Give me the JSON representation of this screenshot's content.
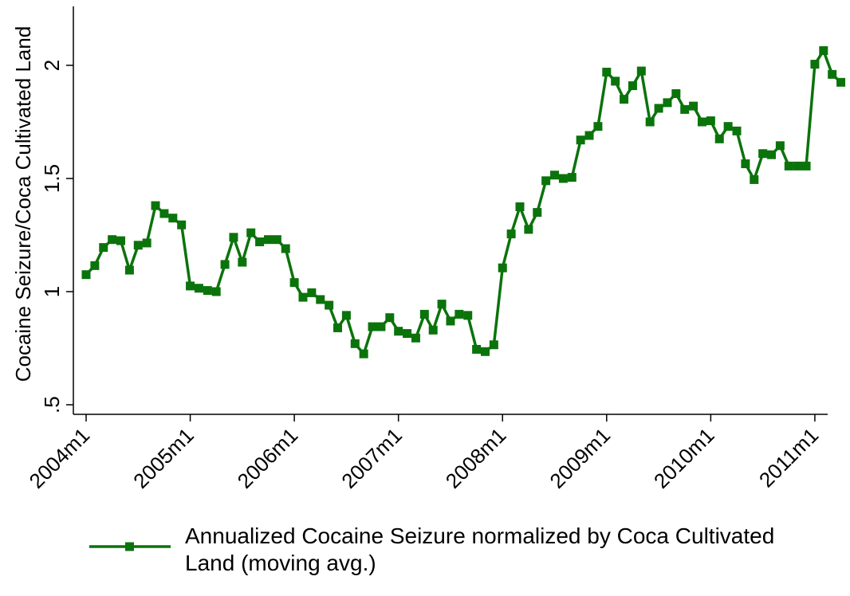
{
  "chart_data": {
    "type": "line",
    "ylabel": "Cocaine Seizure/Coca Cultivated Land",
    "xlabel": "",
    "title": "",
    "ylim": [
      0.5,
      2.2
    ],
    "yticks": [
      {
        "value": 0.5,
        "label": ".5"
      },
      {
        "value": 1.0,
        "label": "1"
      },
      {
        "value": 1.5,
        "label": "1.5"
      },
      {
        "value": 2.0,
        "label": "2"
      }
    ],
    "xticks": [
      {
        "value": 0,
        "label": "2004m1"
      },
      {
        "value": 12,
        "label": "2005m1"
      },
      {
        "value": 24,
        "label": "2006m1"
      },
      {
        "value": 36,
        "label": "2007m1"
      },
      {
        "value": 48,
        "label": "2008m1"
      },
      {
        "value": 60,
        "label": "2009m1"
      },
      {
        "value": 72,
        "label": "2010m1"
      },
      {
        "value": 84,
        "label": "2011m1"
      }
    ],
    "xlim": [
      0,
      87
    ],
    "grid": false,
    "legend_position": "bottom",
    "colors": {
      "series": "#0b730b"
    },
    "series": [
      {
        "name": "Annualized Cocaine Seizure normalized by Coca Cultivated Land (moving avg.)",
        "legend_lines": [
          "Annualized Cocaine Seizure normalized by Coca Cultivated",
          "Land (moving avg.)"
        ],
        "marker": "square",
        "x": [
          0,
          1,
          2,
          3,
          4,
          5,
          6,
          7,
          8,
          9,
          10,
          11,
          12,
          13,
          14,
          15,
          16,
          17,
          18,
          19,
          20,
          21,
          22,
          23,
          24,
          25,
          26,
          27,
          28,
          29,
          30,
          31,
          32,
          33,
          34,
          35,
          36,
          37,
          38,
          39,
          40,
          41,
          42,
          43,
          44,
          45,
          46,
          47,
          48,
          49,
          50,
          51,
          52,
          53,
          54,
          55,
          56,
          57,
          58,
          59,
          60,
          61,
          62,
          63,
          64,
          65,
          66,
          67,
          68,
          69,
          70,
          71,
          72,
          73,
          74,
          75,
          76,
          77,
          78,
          79,
          80,
          81,
          82,
          83,
          84,
          85,
          86,
          87
        ],
        "values": [
          1.075,
          1.115,
          1.195,
          1.23,
          1.225,
          1.095,
          1.205,
          1.215,
          1.38,
          1.345,
          1.325,
          1.295,
          1.025,
          1.015,
          1.005,
          1.0,
          1.12,
          1.24,
          1.13,
          1.26,
          1.22,
          1.23,
          1.23,
          1.19,
          1.04,
          0.975,
          0.995,
          0.965,
          0.94,
          0.84,
          0.895,
          0.77,
          0.725,
          0.845,
          0.845,
          0.885,
          0.825,
          0.815,
          0.795,
          0.9,
          0.83,
          0.945,
          0.87,
          0.9,
          0.895,
          0.745,
          0.735,
          0.765,
          1.105,
          1.255,
          1.375,
          1.275,
          1.35,
          1.49,
          1.515,
          1.5,
          1.505,
          1.67,
          1.69,
          1.73,
          1.97,
          1.93,
          1.85,
          1.91,
          1.975,
          1.75,
          1.81,
          1.835,
          1.875,
          1.805,
          1.82,
          1.75,
          1.755,
          1.675,
          1.73,
          1.71,
          1.565,
          1.495,
          1.61,
          1.605,
          1.645,
          1.555,
          1.555,
          1.555,
          2.005,
          2.065,
          1.96,
          1.925
        ]
      }
    ]
  }
}
